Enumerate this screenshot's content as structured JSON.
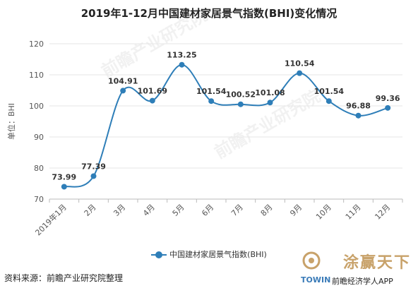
{
  "title": "2019年1-12月中国建材家居景气指数(BHI)变化情况",
  "source": "资料来源：前瞻产业研究院整理",
  "watermark": "前瞻产业研究院",
  "brand": {
    "cn": "涂赢天下",
    "en": "TOWIN",
    "app": "前瞻经济学人APP"
  },
  "colors": {
    "series": "#2e7eb8",
    "grid": "#e6e6e6",
    "axis": "#bbbbbb"
  },
  "chart_data": {
    "type": "line",
    "title": "2019年1-12月中国建材家居景气指数(BHI)变化情况",
    "ylabel": "单位：BHI",
    "xlabel": "",
    "categories": [
      "2019年1月",
      "2月",
      "3月",
      "4月",
      "5月",
      "6月",
      "7月",
      "8月",
      "9月",
      "10月",
      "11月",
      "12月"
    ],
    "series": [
      {
        "name": "中国建材家居景气指数(BHI)",
        "values": [
          73.99,
          77.39,
          104.91,
          101.69,
          113.25,
          101.54,
          100.52,
          101.08,
          110.54,
          101.54,
          96.88,
          99.36
        ],
        "labels": [
          "73.99",
          "77.39",
          "104.91",
          "101.69",
          "113.25",
          "101.54",
          "100.52",
          "101.08",
          "110.54",
          "101.54",
          "96.88",
          "99.36"
        ]
      }
    ],
    "ylim": [
      70,
      120
    ],
    "yticks": [
      70,
      80,
      90,
      100,
      110,
      120
    ],
    "grid": true,
    "legend": "bottom",
    "smooth": true
  }
}
